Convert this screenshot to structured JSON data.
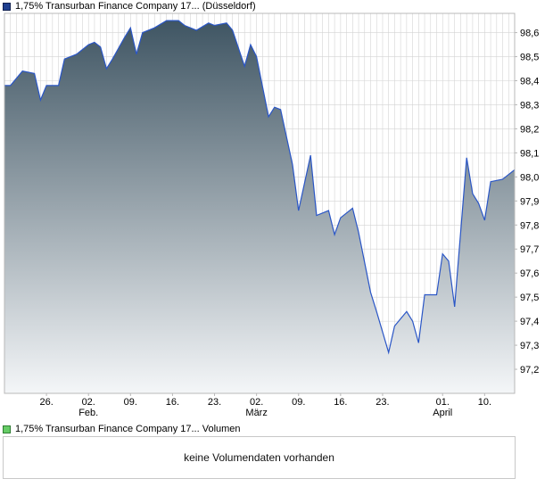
{
  "legend": {
    "price_label": "1,75% Transurban Finance Company 17... (Düsseldorf)",
    "volume_label": "1,75% Transurban Finance Company 17... Volumen"
  },
  "volume_panel": {
    "message": "keine Volumendaten vorhanden"
  },
  "colors": {
    "line": "#2a56c6",
    "fill_top": "#3f5563",
    "fill_bottom": "#f4f6f8",
    "grid": "#d4d4d4",
    "frame": "#b8b8b8"
  },
  "chart_data": {
    "type": "area",
    "title": "1,75% Transurban Finance Company 17... (Düsseldorf)",
    "xlabel": "",
    "ylabel": "",
    "grid": true,
    "ylim": [
      97.1,
      98.68
    ],
    "y_ticks": [
      97.2,
      97.3,
      97.4,
      97.5,
      97.6,
      97.7,
      97.8,
      97.9,
      98.0,
      98.1,
      98.2,
      98.3,
      98.4,
      98.5,
      98.6
    ],
    "x_count": 86,
    "x_ticks": [
      {
        "index": 7,
        "day": "26.",
        "month": ""
      },
      {
        "index": 14,
        "day": "02.",
        "month": "Feb."
      },
      {
        "index": 21,
        "day": "09.",
        "month": ""
      },
      {
        "index": 28,
        "day": "16.",
        "month": ""
      },
      {
        "index": 35,
        "day": "23.",
        "month": ""
      },
      {
        "index": 42,
        "day": "02.",
        "month": "März"
      },
      {
        "index": 49,
        "day": "09.",
        "month": ""
      },
      {
        "index": 56,
        "day": "16.",
        "month": ""
      },
      {
        "index": 63,
        "day": "23.",
        "month": ""
      },
      {
        "index": 73,
        "day": "01.",
        "month": "April"
      },
      {
        "index": 80,
        "day": "10.",
        "month": ""
      }
    ],
    "series": [
      {
        "name": "1,75% Transurban Finance Company 17... (Düsseldorf)",
        "points": [
          [
            0,
            98.38
          ],
          [
            1,
            98.38
          ],
          [
            3,
            98.44
          ],
          [
            5,
            98.43
          ],
          [
            6,
            98.32
          ],
          [
            7,
            98.38
          ],
          [
            9,
            98.38
          ],
          [
            10,
            98.49
          ],
          [
            12,
            98.51
          ],
          [
            14,
            98.55
          ],
          [
            15,
            98.56
          ],
          [
            16,
            98.54
          ],
          [
            17,
            98.45
          ],
          [
            18,
            98.49
          ],
          [
            20,
            98.58
          ],
          [
            21,
            98.62
          ],
          [
            22,
            98.51
          ],
          [
            23,
            98.6
          ],
          [
            25,
            98.62
          ],
          [
            27,
            98.65
          ],
          [
            29,
            98.65
          ],
          [
            30,
            98.63
          ],
          [
            32,
            98.61
          ],
          [
            34,
            98.64
          ],
          [
            35,
            98.63
          ],
          [
            37,
            98.64
          ],
          [
            38,
            98.61
          ],
          [
            40,
            98.46
          ],
          [
            41,
            98.55
          ],
          [
            42,
            98.5
          ],
          [
            44,
            98.25
          ],
          [
            45,
            98.29
          ],
          [
            46,
            98.28
          ],
          [
            48,
            98.05
          ],
          [
            49,
            97.86
          ],
          [
            51,
            98.09
          ],
          [
            52,
            97.84
          ],
          [
            54,
            97.86
          ],
          [
            55,
            97.76
          ],
          [
            56,
            97.83
          ],
          [
            58,
            97.87
          ],
          [
            59,
            97.77
          ],
          [
            61,
            97.52
          ],
          [
            62,
            97.44
          ],
          [
            64,
            97.27
          ],
          [
            65,
            97.38
          ],
          [
            67,
            97.44
          ],
          [
            68,
            97.4
          ],
          [
            69,
            97.31
          ],
          [
            70,
            97.51
          ],
          [
            72,
            97.51
          ],
          [
            73,
            97.68
          ],
          [
            74,
            97.65
          ],
          [
            75,
            97.46
          ],
          [
            77,
            98.08
          ],
          [
            78,
            97.93
          ],
          [
            79,
            97.89
          ],
          [
            80,
            97.82
          ],
          [
            81,
            97.98
          ],
          [
            83,
            97.99
          ],
          [
            85,
            98.03
          ]
        ]
      }
    ]
  }
}
